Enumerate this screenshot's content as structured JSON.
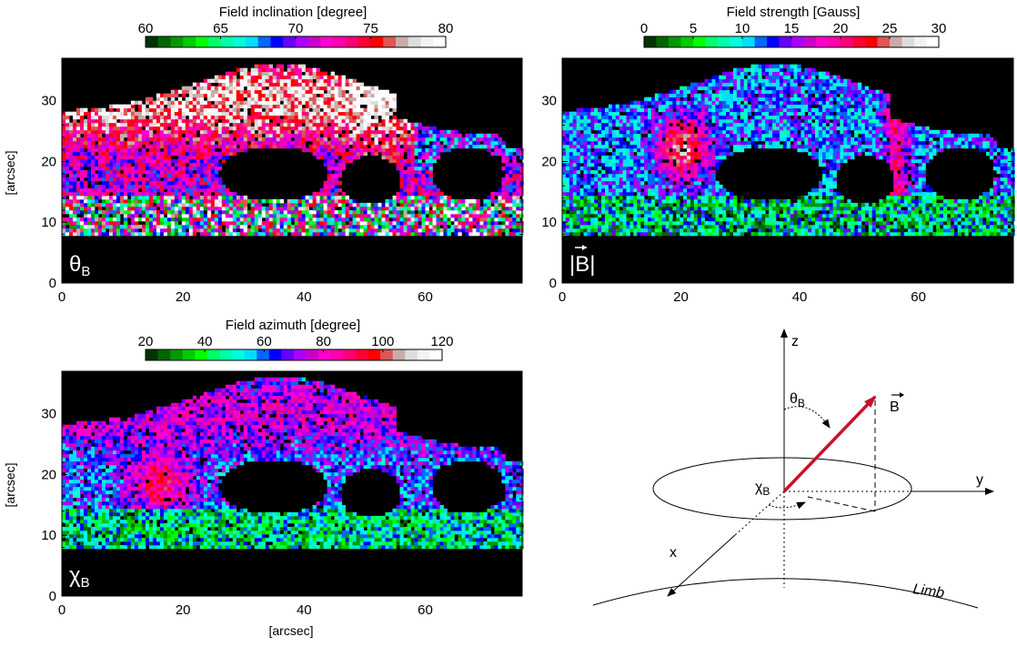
{
  "chart_data": [
    {
      "type": "heatmap",
      "colorbar": {
        "title": "Field inclination [degree]",
        "ticks": [
          60,
          65,
          70,
          75,
          80
        ],
        "range": [
          60,
          80
        ]
      },
      "xlim": [
        0,
        76
      ],
      "ylim": [
        0,
        37
      ],
      "xticks": [
        0,
        20,
        40,
        60
      ],
      "yticks": [
        0,
        10,
        20,
        30
      ],
      "ylabel": "[arcsec]",
      "xlabel": "",
      "panel_label_base": "θ",
      "panel_label_sub": "B",
      "field": "inclination"
    },
    {
      "type": "heatmap",
      "colorbar": {
        "title": "Field strength [Gauss]",
        "ticks": [
          0,
          5,
          10,
          15,
          20,
          25,
          30
        ],
        "range": [
          0,
          30
        ]
      },
      "xlim": [
        0,
        76
      ],
      "ylim": [
        0,
        37
      ],
      "xticks": [
        0,
        20,
        40,
        60
      ],
      "yticks": [
        0,
        10,
        20,
        30
      ],
      "ylabel": "",
      "xlabel": "",
      "panel_label_base": "|B|",
      "panel_label_sub": "",
      "field": "strength"
    },
    {
      "type": "heatmap",
      "colorbar": {
        "title": "Field azimuth [degree]",
        "ticks": [
          20,
          40,
          60,
          80,
          100,
          120
        ],
        "range": [
          20,
          120
        ]
      },
      "xlim": [
        0,
        76
      ],
      "ylim": [
        0,
        37
      ],
      "xticks": [
        0,
        20,
        40,
        60
      ],
      "yticks": [
        0,
        10,
        20,
        30
      ],
      "ylabel": "[arcsec]",
      "xlabel": "[arcsec]",
      "panel_label_base": "χ",
      "panel_label_sub": "B",
      "field": "azimuth"
    }
  ],
  "colormap": [
    "#003300",
    "#006600",
    "#009900",
    "#00cc00",
    "#00ff00",
    "#00ff66",
    "#00ffaa",
    "#00ffdd",
    "#00ddff",
    "#0066ff",
    "#0000ff",
    "#6600ff",
    "#aa00ff",
    "#cc00cc",
    "#ff00cc",
    "#ff00aa",
    "#ff0077",
    "#ff0033",
    "#ff0000",
    "#dd5555",
    "#ccaaaa",
    "#dddddd",
    "#f2f2f2",
    "#ffffff"
  ],
  "diagram": {
    "axis_z": "z",
    "axis_y": "y",
    "axis_x": "x",
    "theta_base": "θ",
    "theta_sub": "B",
    "chi_base": "χ",
    "chi_sub": "B",
    "vector_label": "B",
    "limb_label": "Limb",
    "vector_color": "#c8102e"
  }
}
